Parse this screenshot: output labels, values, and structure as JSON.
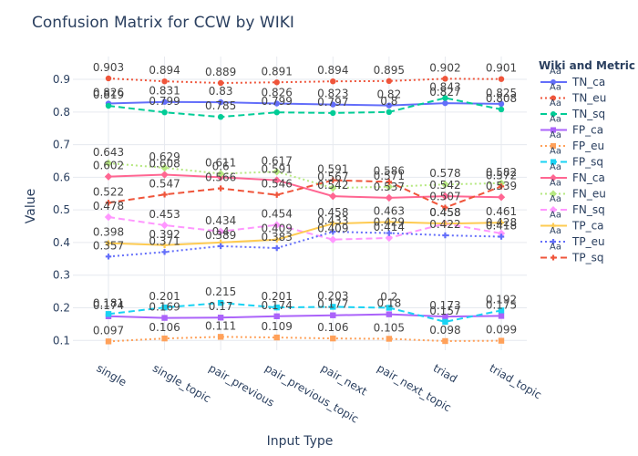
{
  "chart_data": {
    "type": "line",
    "title": "Confusion Matrix for CCW by WIKI",
    "xlabel": "Input Type",
    "ylabel": "Value",
    "ylim": [
      0.07,
      0.97
    ],
    "yticks": [
      0.1,
      0.2,
      0.3,
      0.4,
      0.5,
      0.6,
      0.7,
      0.8,
      0.9
    ],
    "grid": true,
    "legend_title": "Wiki and Metric",
    "legend_placement": "right",
    "categories": [
      "single",
      "single_topic",
      "pair_previous",
      "pair_previous_topic",
      "pair_next",
      "pair_next_topic",
      "triad",
      "triad_topic"
    ],
    "series": [
      {
        "name": "TN_ca",
        "color": "#636efa",
        "dash": "solid",
        "marker": "circle",
        "values": [
          0.826,
          0.831,
          0.83,
          0.826,
          0.823,
          0.82,
          0.827,
          0.825
        ]
      },
      {
        "name": "TN_eu",
        "color": "#ef553b",
        "dash": "dot",
        "marker": "circle",
        "values": [
          0.903,
          0.894,
          0.889,
          0.891,
          0.894,
          0.895,
          0.902,
          0.901
        ]
      },
      {
        "name": "TN_sq",
        "color": "#00cc96",
        "dash": "dash",
        "marker": "circle",
        "values": [
          0.819,
          0.799,
          0.785,
          0.799,
          0.797,
          0.8,
          0.843,
          0.808
        ]
      },
      {
        "name": "FP_ca",
        "color": "#ab63fa",
        "dash": "solid",
        "marker": "square",
        "values": [
          0.174,
          0.169,
          0.17,
          0.174,
          0.177,
          0.18,
          0.173,
          0.175
        ]
      },
      {
        "name": "FP_eu",
        "color": "#ffa15a",
        "dash": "dot",
        "marker": "square",
        "values": [
          0.097,
          0.106,
          0.111,
          0.109,
          0.106,
          0.105,
          0.098,
          0.099
        ]
      },
      {
        "name": "FP_sq",
        "color": "#19d3f3",
        "dash": "dash",
        "marker": "square",
        "values": [
          0.181,
          0.201,
          0.215,
          0.201,
          0.203,
          0.2,
          0.157,
          0.192
        ]
      },
      {
        "name": "FN_ca",
        "color": "#ff6692",
        "dash": "solid",
        "marker": "diamond",
        "values": [
          0.602,
          0.608,
          0.6,
          0.591,
          0.542,
          0.537,
          0.542,
          0.539
        ]
      },
      {
        "name": "FN_eu",
        "color": "#b6e880",
        "dash": "dot",
        "marker": "diamond",
        "values": [
          0.643,
          0.629,
          0.611,
          0.617,
          0.567,
          0.571,
          0.578,
          0.582
        ]
      },
      {
        "name": "FN_sq",
        "color": "#ff97ff",
        "dash": "dash",
        "marker": "diamond",
        "values": [
          0.478,
          0.453,
          0.434,
          0.454,
          0.409,
          0.414,
          0.458,
          0.428
        ]
      },
      {
        "name": "TP_ca",
        "color": "#fecb52",
        "dash": "solid",
        "marker": "cross",
        "values": [
          0.398,
          0.392,
          0.4,
          0.409,
          0.458,
          0.463,
          0.458,
          0.461
        ]
      },
      {
        "name": "TP_eu",
        "color": "#636efa",
        "dash": "dot",
        "marker": "cross",
        "values": [
          0.357,
          0.371,
          0.389,
          0.383,
          0.433,
          0.429,
          0.422,
          0.418
        ]
      },
      {
        "name": "TP_sq",
        "color": "#ef553b",
        "dash": "dash",
        "marker": "cross",
        "values": [
          0.522,
          0.547,
          0.566,
          0.546,
          0.591,
          0.586,
          0.507,
          0.572
        ]
      }
    ]
  }
}
